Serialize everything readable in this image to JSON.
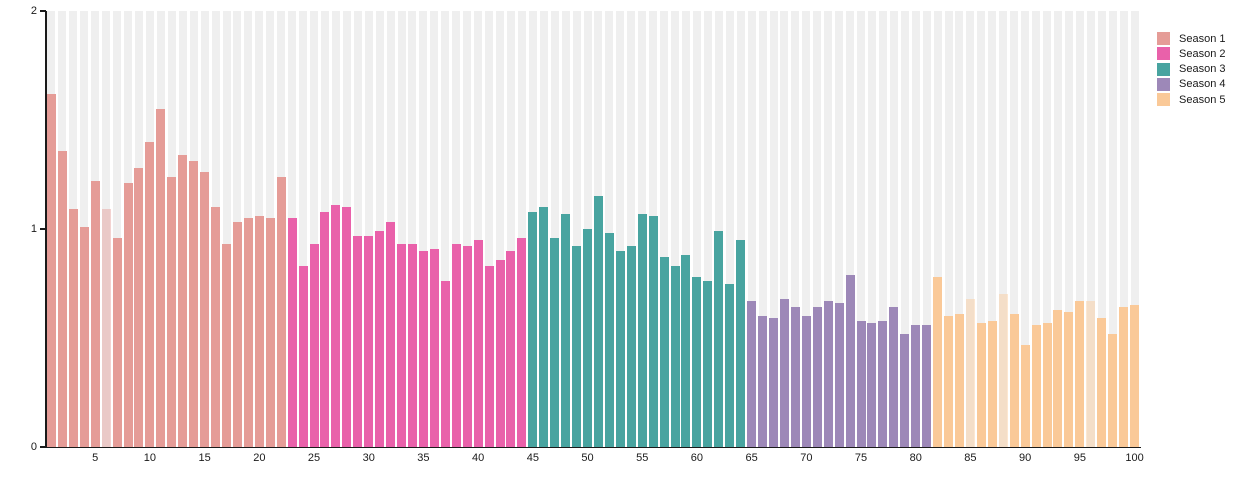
{
  "chart_data": {
    "type": "bar",
    "title": "",
    "xlabel": "",
    "ylabel": "",
    "ylim": [
      0,
      2
    ],
    "yticks": [
      0,
      1,
      2
    ],
    "xticks": [
      5,
      10,
      15,
      20,
      25,
      30,
      35,
      40,
      45,
      50,
      55,
      60,
      65,
      70,
      75,
      80,
      85,
      90,
      95,
      100
    ],
    "x_range": [
      1,
      100
    ],
    "grid": "vertical-stripes-per-bar",
    "legend_position": "upper-right-outside",
    "series": [
      {
        "name": "Season 1",
        "color": "#e59c97",
        "episodes": [
          1,
          22
        ],
        "values": [
          1.62,
          1.36,
          1.09,
          1.01,
          1.22,
          1.09,
          0.96,
          1.21,
          1.28,
          1.4,
          1.55,
          1.24,
          1.34,
          1.31,
          1.26,
          1.1,
          0.93,
          1.03,
          1.05,
          1.06,
          1.05,
          1.24
        ]
      },
      {
        "name": "Season 2",
        "color": "#e961aa",
        "episodes": [
          23,
          44
        ],
        "values": [
          1.05,
          0.83,
          0.93,
          1.08,
          1.11,
          1.1,
          0.97,
          0.97,
          0.99,
          1.03,
          0.93,
          0.93,
          0.9,
          0.91,
          0.76,
          0.93,
          0.92,
          0.95,
          0.83,
          0.86,
          0.9,
          0.96
        ]
      },
      {
        "name": "Season 3",
        "color": "#48a4a0",
        "episodes": [
          45,
          64
        ],
        "values": [
          1.08,
          1.1,
          0.96,
          1.07,
          0.92,
          1.0,
          1.15,
          0.98,
          0.9,
          0.92,
          1.07,
          1.06,
          0.87,
          0.83,
          0.88,
          0.78,
          0.76,
          0.99,
          0.75,
          0.95
        ]
      },
      {
        "name": "Season 4",
        "color": "#9d88b8",
        "episodes": [
          65,
          81
        ],
        "values": [
          0.67,
          0.6,
          0.59,
          0.68,
          0.64,
          0.6,
          0.64,
          0.67,
          0.66,
          0.79,
          0.58,
          0.57,
          0.58,
          0.64,
          0.52,
          0.56,
          0.56
        ]
      },
      {
        "name": "Season 5",
        "color": "#fac998",
        "episodes": [
          82,
          100
        ],
        "values": [
          0.78,
          0.6,
          0.61,
          0.68,
          0.57,
          0.58,
          0.7,
          0.61,
          0.47,
          0.56,
          0.57,
          0.63,
          0.62,
          0.67,
          0.67,
          0.59,
          0.52,
          0.64,
          0.65
        ]
      }
    ],
    "pale_bars": [
      6,
      85,
      88,
      96
    ],
    "colors": {
      "stripe_background": "#efefef",
      "axis": "#1a1a1a",
      "tick_text": "#1a1a1a",
      "page_background": "#ffffff"
    }
  }
}
